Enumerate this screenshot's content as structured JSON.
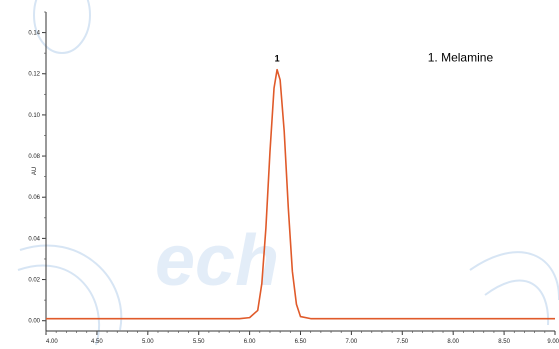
{
  "chart_data": {
    "type": "line",
    "title": "",
    "xlabel": "",
    "ylabel": "AU",
    "xlim": [
      4.0,
      9.0
    ],
    "ylim": [
      -0.005,
      0.15
    ],
    "x_ticks": [
      "4.00",
      "4.50",
      "5.00",
      "5.50",
      "6.00",
      "6.50",
      "7.00",
      "7.50",
      "8.00",
      "8.50",
      "9.00"
    ],
    "y_ticks": [
      "0.00",
      "0.02",
      "0.04",
      "0.06",
      "0.08",
      "0.10",
      "0.12",
      "0.14"
    ],
    "grid": false,
    "annotations": [
      {
        "text": "1. Melamine",
        "x": 7.75,
        "y": 0.126
      }
    ],
    "peak_labels": [
      {
        "text": "1",
        "x": 6.27,
        "y": 0.123
      }
    ],
    "series": [
      {
        "color": "#e05a2a",
        "x": [
          4.0,
          4.5,
          5.0,
          5.5,
          5.9,
          6.0,
          6.08,
          6.12,
          6.16,
          6.2,
          6.24,
          6.27,
          6.3,
          6.34,
          6.38,
          6.42,
          6.46,
          6.5,
          6.6,
          7.0,
          7.5,
          8.0,
          8.5,
          9.0
        ],
        "y": [
          0.001,
          0.001,
          0.001,
          0.001,
          0.001,
          0.0015,
          0.005,
          0.018,
          0.045,
          0.082,
          0.113,
          0.122,
          0.117,
          0.092,
          0.055,
          0.024,
          0.008,
          0.002,
          0.001,
          0.001,
          0.001,
          0.001,
          0.001,
          0.001
        ]
      }
    ]
  }
}
